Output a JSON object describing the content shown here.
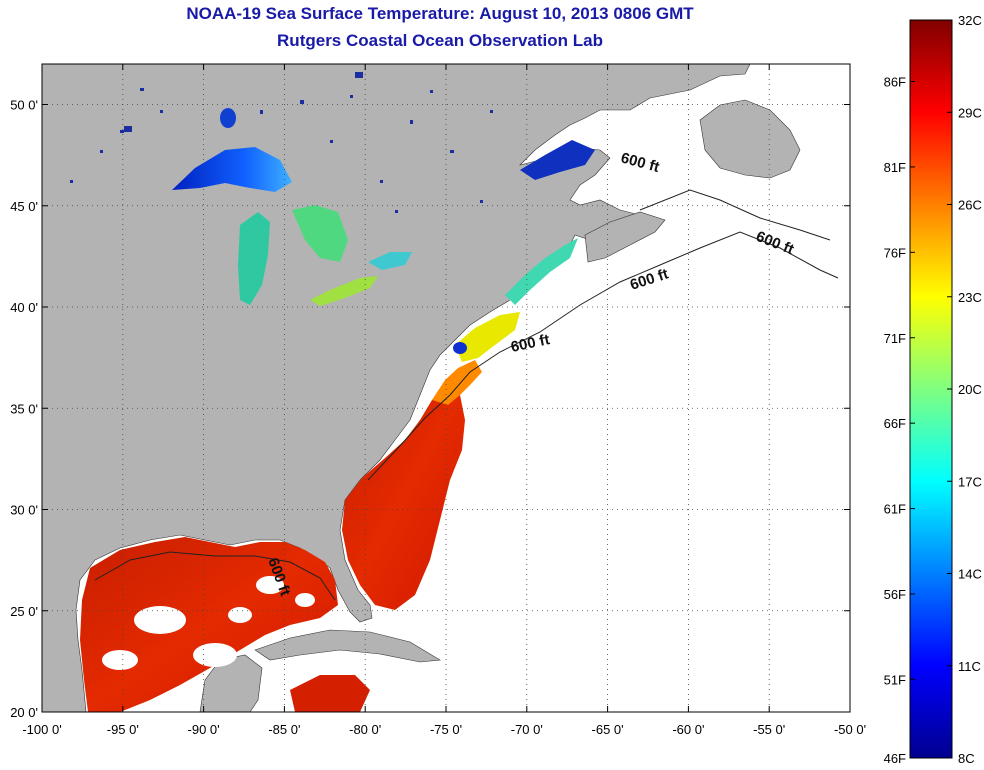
{
  "title": {
    "line1": "NOAA-19 Sea Surface Temperature:  August 10, 2013 0806 GMT",
    "line2": "Rutgers Coastal Ocean Observation Lab"
  },
  "map": {
    "lon_range": [
      -100,
      -50
    ],
    "lat_range": [
      20,
      52
    ],
    "lon_ticks": [
      {
        "value": -100,
        "label": "-100 0'"
      },
      {
        "value": -95,
        "label": "-95 0'"
      },
      {
        "value": -90,
        "label": "-90 0'"
      },
      {
        "value": -85,
        "label": "-85 0'"
      },
      {
        "value": -80,
        "label": "-80 0'"
      },
      {
        "value": -75,
        "label": "-75 0'"
      },
      {
        "value": -70,
        "label": "-70 0'"
      },
      {
        "value": -65,
        "label": "-65 0'"
      },
      {
        "value": -60,
        "label": "-60 0'"
      },
      {
        "value": -55,
        "label": "-55 0'"
      },
      {
        "value": -50,
        "label": "-50 0'"
      }
    ],
    "lat_ticks": [
      {
        "value": 20,
        "label": "20 0'"
      },
      {
        "value": 25,
        "label": "25 0'"
      },
      {
        "value": 30,
        "label": "30 0'"
      },
      {
        "value": 35,
        "label": "35 0'"
      },
      {
        "value": 40,
        "label": "40 0'"
      },
      {
        "value": 45,
        "label": "45 0'"
      },
      {
        "value": 50,
        "label": "50 0'"
      }
    ],
    "grid": "dotted",
    "contour_labels": [
      "600 ft",
      "600 ft",
      "600 ft",
      "600 ft",
      "600 ft"
    ],
    "colors": {
      "land": "#b3b3b3",
      "no_data": "#ffffff"
    }
  },
  "colorbar": {
    "range_c": [
      8,
      32
    ],
    "celsius_labels": [
      "32C",
      "29C",
      "26C",
      "23C",
      "20C",
      "17C",
      "14C",
      "11C",
      "8C"
    ],
    "fahrenheit_labels": [
      "86F",
      "81F",
      "76F",
      "71F",
      "66F",
      "61F",
      "56F",
      "51F",
      "46F"
    ],
    "colormap": "jet"
  }
}
